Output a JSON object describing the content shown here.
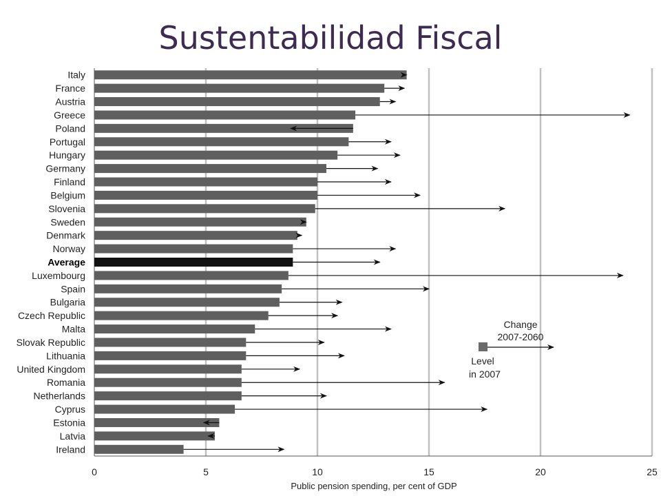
{
  "title": "Sustentabilidad Fiscal",
  "chart_data": {
    "type": "bar",
    "orientation": "horizontal",
    "categories": [
      "Italy",
      "France",
      "Austria",
      "Greece",
      "Poland",
      "Portugal",
      "Hungary",
      "Germany",
      "Finland",
      "Belgium",
      "Slovenia",
      "Sweden",
      "Denmark",
      "Norway",
      "Average",
      "Luxembourg",
      "Spain",
      "Bulgaria",
      "Czech Republic",
      "Malta",
      "Slovak Republic",
      "Lithuania",
      "United Kingdom",
      "Romania",
      "Netherlands",
      "Cyprus",
      "Estonia",
      "Latvia",
      "Ireland"
    ],
    "highlight_category": "Average",
    "series": [
      {
        "name": "Level in 2007",
        "values": [
          14.0,
          13.0,
          12.8,
          11.7,
          11.6,
          11.4,
          10.9,
          10.4,
          10.0,
          10.0,
          9.9,
          9.5,
          9.1,
          8.9,
          8.9,
          8.7,
          8.4,
          8.3,
          7.8,
          7.2,
          6.8,
          6.8,
          6.6,
          6.6,
          6.6,
          6.3,
          5.6,
          5.4,
          4.0
        ]
      },
      {
        "name": "Change 2007-2060",
        "values": [
          14.0,
          13.9,
          13.5,
          24.0,
          8.8,
          13.3,
          13.7,
          12.7,
          13.3,
          14.6,
          18.4,
          9.5,
          9.3,
          13.5,
          12.8,
          23.7,
          15.0,
          11.1,
          10.9,
          13.3,
          10.3,
          11.2,
          9.2,
          15.7,
          10.4,
          17.6,
          4.9,
          5.1,
          8.5
        ]
      }
    ],
    "xlabel": "Public pension spending, per cent of GDP",
    "xlim": [
      0,
      25
    ],
    "xticks": [
      0,
      5,
      10,
      15,
      20,
      25
    ],
    "grid": true,
    "legend": {
      "level_label_line1": "Level",
      "level_label_line2": "in 2007",
      "change_label_line1": "Change",
      "change_label_line2": "2007-2060",
      "placement": "lower-right"
    },
    "colors": {
      "bar": "#5f5f5f",
      "average_bar": "#111111",
      "arrow": "#111111",
      "grid": "#c0c0c0"
    }
  }
}
